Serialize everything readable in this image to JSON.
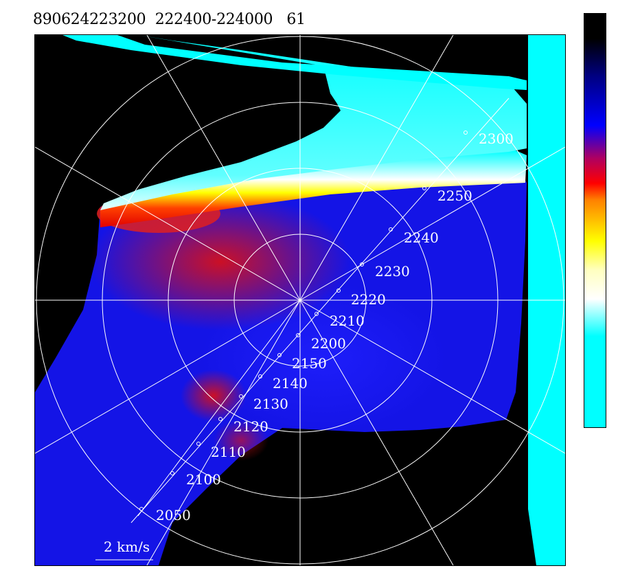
{
  "header": {
    "title": "890624223200  222400-224000   61"
  },
  "plot": {
    "scale_label": "2 km/s",
    "track": {
      "labels": [
        "2050",
        "2100",
        "2110",
        "2120",
        "2130",
        "2140",
        "2150",
        "2200",
        "2210",
        "2220",
        "2230",
        "2240",
        "2250",
        "2300"
      ]
    }
  },
  "colors": {
    "background": "#000000",
    "grid": "#ffffff",
    "colorbar": [
      "#00ffff",
      "#ffffff",
      "#ffff00",
      "#ff0000",
      "#0000ff",
      "#000000"
    ]
  }
}
